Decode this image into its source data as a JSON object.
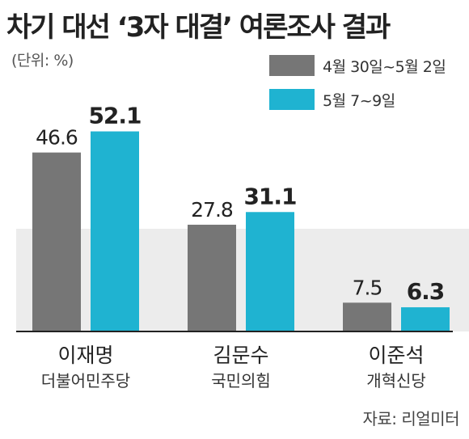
{
  "title": "차기 대선 ‘3자 대결’ 여론조사 결과",
  "unit": "(단위: %)",
  "source": "자료: 리얼미터",
  "colors": {
    "series1": "#767676",
    "series2": "#1fb3d1",
    "band": "#ececec",
    "axis": "#222222"
  },
  "chart_data": {
    "type": "bar",
    "categories": [
      "이재명",
      "김문수",
      "이준석"
    ],
    "subcategories": [
      "더불어민주당",
      "국민의힘",
      "개혁신당"
    ],
    "series": [
      {
        "name": "4월 30일~5월 2일",
        "values": [
          46.6,
          27.8,
          7.5
        ]
      },
      {
        "name": "5월 7~9일",
        "values": [
          52.1,
          31.1,
          6.3
        ]
      }
    ],
    "ylim": [
      0,
      60
    ]
  }
}
